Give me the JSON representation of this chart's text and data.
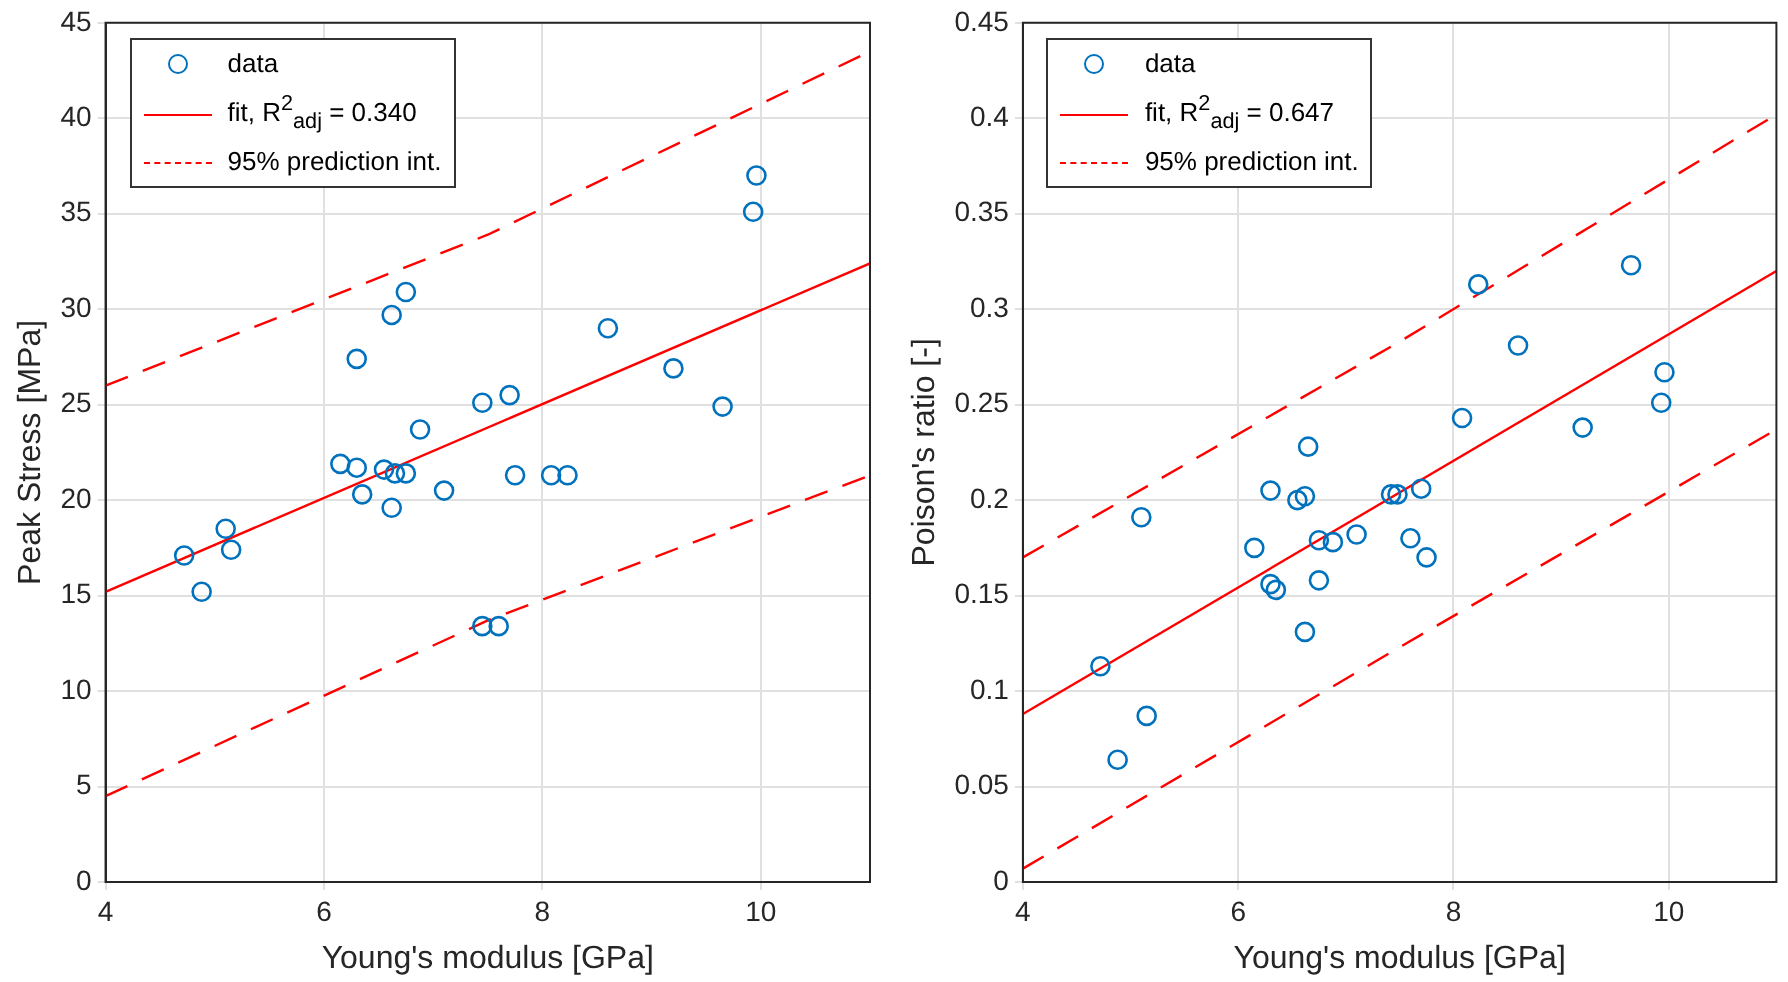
{
  "chart_data": [
    {
      "type": "scatter",
      "xlabel": "Young's modulus [GPa]",
      "ylabel": "Peak Stress [MPa]",
      "xlim": [
        4,
        11
      ],
      "xticks": [
        4,
        6,
        8,
        10
      ],
      "ylim": [
        0,
        45
      ],
      "yticks": [
        0,
        5,
        10,
        15,
        20,
        25,
        30,
        35,
        40,
        45
      ],
      "grid": true,
      "legend": "top left",
      "series": [
        {
          "name": "data",
          "marker": "circle",
          "color": "#0072bd",
          "x": [
            4.72,
            4.88,
            5.1,
            5.15,
            6.15,
            6.3,
            6.3,
            6.35,
            6.55,
            6.62,
            6.62,
            6.65,
            6.75,
            6.75,
            6.88,
            7.1,
            7.45,
            7.45,
            7.6,
            7.7,
            7.75,
            8.08,
            8.23,
            8.6,
            9.2,
            9.65,
            9.93,
            9.96
          ],
          "values": [
            17.1,
            15.2,
            18.5,
            17.4,
            21.9,
            27.4,
            21.7,
            20.3,
            21.6,
            29.7,
            19.6,
            21.4,
            30.9,
            21.4,
            23.7,
            20.5,
            25.1,
            13.4,
            13.4,
            25.5,
            21.3,
            21.3,
            21.3,
            29.0,
            26.9,
            24.9,
            35.1,
            37.0
          ]
        },
        {
          "name": "fit, R$^{2}$$_{adj}$ = 0.340",
          "type": "line",
          "color": "#ff0000",
          "line_style": "solid",
          "x": [
            4,
            11
          ],
          "values": [
            15.2,
            32.4
          ]
        },
        {
          "name": "95% prediction int.",
          "type": "line",
          "color": "#ff0000",
          "line_style": "dashed",
          "x": [
            4,
            7.5,
            11
          ],
          "values": [
            26.0,
            33.9,
            43.5
          ]
        },
        {
          "type": "line",
          "color": "#ff0000",
          "line_style": "dashed",
          "x": [
            4,
            7.5,
            11
          ],
          "values": [
            4.5,
            13.7,
            21.3
          ]
        }
      ]
    },
    {
      "type": "scatter",
      "xlabel": "Young's modulus [GPa]",
      "ylabel": "Poison's ratio [-]",
      "xlim": [
        4,
        11
      ],
      "xticks": [
        4,
        6,
        8,
        10
      ],
      "ylim": [
        0,
        0.45
      ],
      "yticks": [
        0,
        0.05,
        0.1,
        0.15,
        0.2,
        0.25,
        0.3,
        0.35,
        0.4,
        0.45
      ],
      "grid": true,
      "legend": "top left",
      "series": [
        {
          "name": "data",
          "marker": "circle",
          "color": "#0072bd",
          "x": [
            4.72,
            4.88,
            5.1,
            5.15,
            6.15,
            6.3,
            6.3,
            6.35,
            6.55,
            6.62,
            6.62,
            6.65,
            6.75,
            6.75,
            6.88,
            7.1,
            7.42,
            7.48,
            7.6,
            7.7,
            7.75,
            8.08,
            8.23,
            8.6,
            9.2,
            9.65,
            9.93,
            9.96
          ],
          "values": [
            0.113,
            0.064,
            0.191,
            0.087,
            0.175,
            0.205,
            0.156,
            0.153,
            0.2,
            0.202,
            0.131,
            0.228,
            0.179,
            0.158,
            0.178,
            0.182,
            0.203,
            0.203,
            0.18,
            0.206,
            0.17,
            0.243,
            0.313,
            0.281,
            0.238,
            0.323,
            0.251,
            0.267
          ]
        },
        {
          "name": "fit, R$^{2}$$_{adj}$ = 0.647",
          "type": "line",
          "color": "#ff0000",
          "line_style": "solid",
          "x": [
            4,
            11
          ],
          "values": [
            0.088,
            0.32
          ]
        },
        {
          "name": "95% prediction int.",
          "type": "line",
          "color": "#ff0000",
          "line_style": "dashed",
          "x": [
            4,
            7.5,
            11
          ],
          "values": [
            0.17,
            0.283,
            0.402
          ]
        },
        {
          "type": "line",
          "color": "#ff0000",
          "line_style": "dashed",
          "x": [
            4,
            7.5,
            11
          ],
          "values": [
            0.007,
            0.123,
            0.237
          ]
        }
      ]
    }
  ]
}
